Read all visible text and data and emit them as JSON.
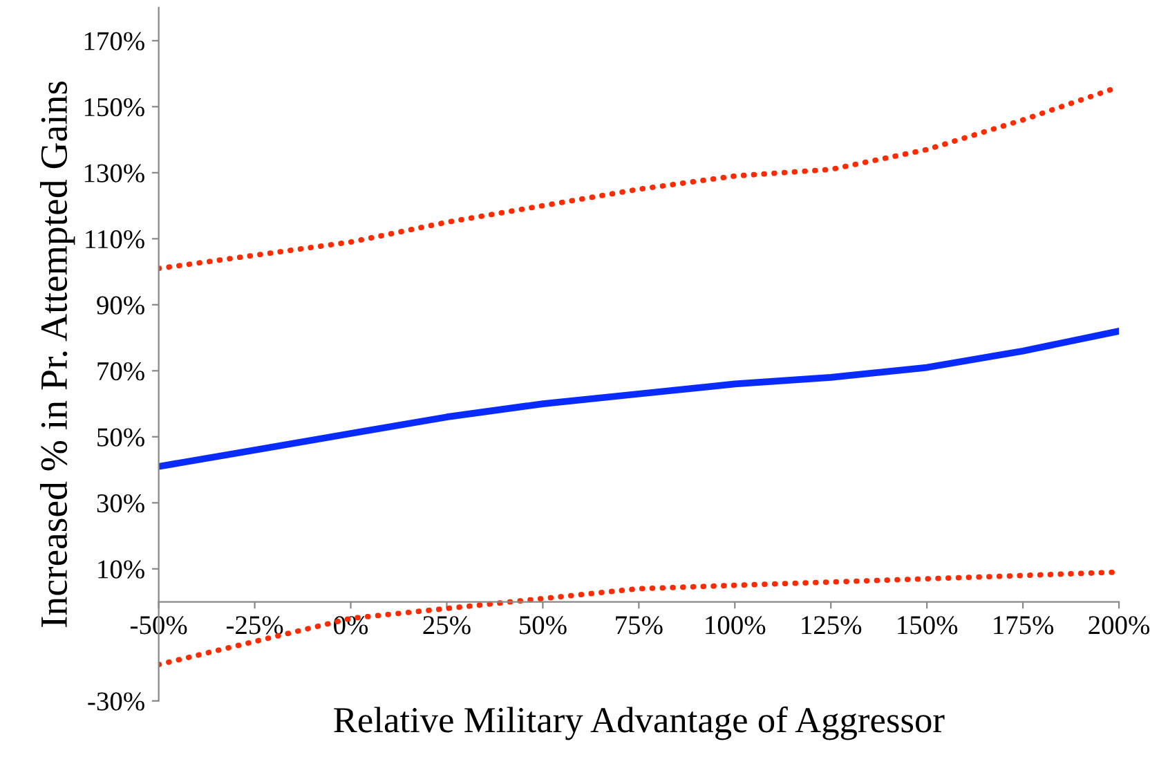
{
  "chart_data": {
    "type": "line",
    "xlabel": "Relative Military Advantage of Aggressor",
    "ylabel": "Increased % in Pr. Attempted Gains",
    "x": [
      -50,
      -25,
      0,
      25,
      50,
      75,
      100,
      125,
      150,
      175,
      200
    ],
    "series": [
      {
        "color": "#ff2a00",
        "line_style": "dotted",
        "values": [
          101,
          105,
          109,
          115,
          120,
          125,
          129,
          131,
          137,
          146,
          156
        ]
      },
      {
        "color": "#0a2bff",
        "line_style": "solid",
        "values": [
          41,
          46,
          51,
          56,
          60,
          63,
          66,
          68,
          71,
          76,
          82
        ]
      },
      {
        "color": "#ff2a00",
        "line_style": "dotted",
        "values": [
          -19,
          -12,
          -5,
          -2,
          1,
          4,
          5,
          6,
          7,
          8,
          9
        ]
      }
    ],
    "xlim": [
      -50,
      200
    ],
    "ylim": [
      -30,
      180
    ],
    "xticks": [
      {
        "value": -50,
        "label": "-50%"
      },
      {
        "value": -25,
        "label": "-25%"
      },
      {
        "value": 0,
        "label": "0%"
      },
      {
        "value": 25,
        "label": "25%"
      },
      {
        "value": 50,
        "label": "50%"
      },
      {
        "value": 75,
        "label": "75%"
      },
      {
        "value": 100,
        "label": "100%"
      },
      {
        "value": 125,
        "label": "125%"
      },
      {
        "value": 150,
        "label": "150%"
      },
      {
        "value": 175,
        "label": "175%"
      },
      {
        "value": 200,
        "label": "200%"
      }
    ],
    "yticks": [
      {
        "value": -30,
        "label": "-30%"
      },
      {
        "value": 10,
        "label": "10%"
      },
      {
        "value": 30,
        "label": "30%"
      },
      {
        "value": 50,
        "label": "50%"
      },
      {
        "value": 70,
        "label": "70%"
      },
      {
        "value": 90,
        "label": "90%"
      },
      {
        "value": 110,
        "label": "110%"
      },
      {
        "value": 130,
        "label": "130%"
      },
      {
        "value": 150,
        "label": "150%"
      },
      {
        "value": 170,
        "label": "170%"
      }
    ],
    "grid": false,
    "legend": false
  }
}
